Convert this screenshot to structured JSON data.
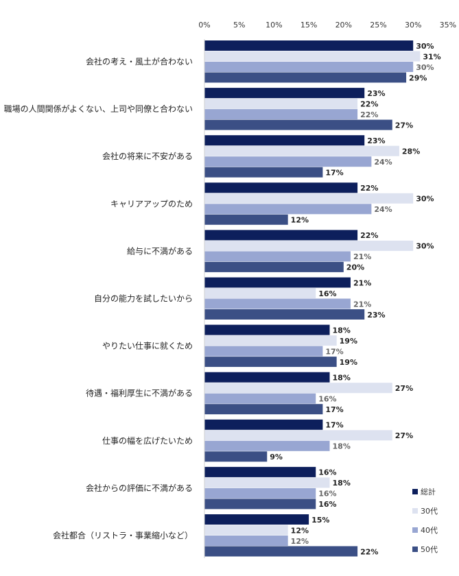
{
  "chart_data": {
    "type": "bar",
    "orientation": "horizontal",
    "title": "",
    "xlabel": "",
    "ylabel": "",
    "xlim": [
      0,
      35
    ],
    "tick_values": [
      0,
      5,
      10,
      15,
      20,
      25,
      30,
      35
    ],
    "tick_labels": [
      "0%",
      "5%",
      "10%",
      "15%",
      "20%",
      "25%",
      "30%",
      "35%"
    ],
    "grid": false,
    "legend_position": "bottom-right",
    "categories": [
      "会社の考え・風土が合わない",
      "職場の人間関係がよくない、上司や同僚と合わない",
      "会社の将来に不安がある",
      "キャリアアップのため",
      "給与に不満がある",
      "自分の能力を試したいから",
      "やりたい仕事に就くため",
      "待遇・福利厚生に不満がある",
      "仕事の幅を広げたいため",
      "会社からの評価に不満がある",
      "会社都合（リストラ・事業縮小など）"
    ],
    "series": [
      {
        "name": "総計",
        "color": "#0d1f5c",
        "label_color": "#222222",
        "values": [
          30,
          23,
          23,
          22,
          22,
          21,
          18,
          18,
          17,
          16,
          15
        ]
      },
      {
        "name": "30代",
        "color": "#dde2f0",
        "label_color": "#222222",
        "values": [
          31,
          22,
          28,
          30,
          30,
          16,
          19,
          27,
          27,
          18,
          12
        ]
      },
      {
        "name": "40代",
        "color": "#98a6d2",
        "label_color": "#666666",
        "values": [
          30,
          22,
          24,
          24,
          21,
          21,
          17,
          16,
          18,
          16,
          12
        ]
      },
      {
        "name": "50代",
        "color": "#3b4f85",
        "label_color": "#222222",
        "values": [
          29,
          27,
          17,
          12,
          20,
          23,
          19,
          17,
          9,
          16,
          22
        ]
      }
    ]
  }
}
